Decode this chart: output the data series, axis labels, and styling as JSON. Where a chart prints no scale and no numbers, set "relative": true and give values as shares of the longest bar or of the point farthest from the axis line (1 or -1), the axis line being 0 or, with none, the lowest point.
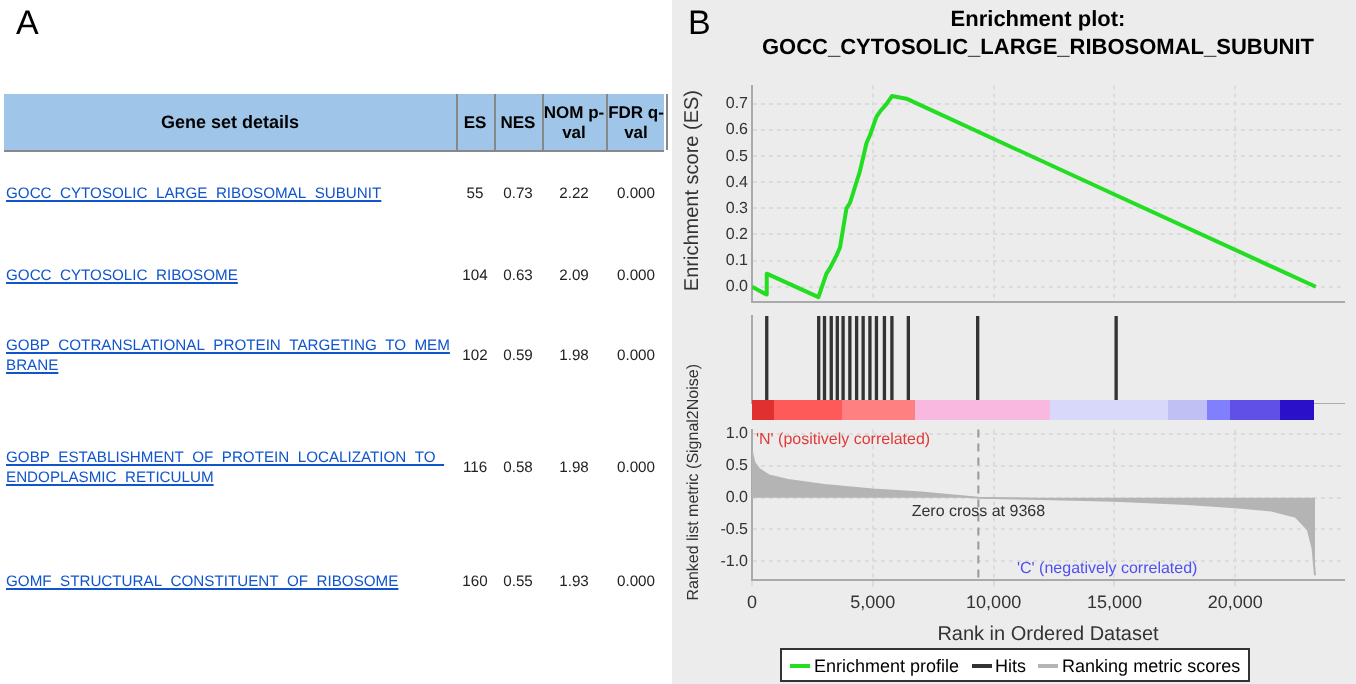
{
  "chart_data": [
    {
      "type": "other",
      "annotations": [
        "A"
      ],
      "xlabel": "Gene set details",
      "data_labels": true,
      "categories": [
        "GOCC_CYTOSOLIC_LARGE_RIBOSOMAL_SUBUNIT",
        "GOCC_CYTOSOLIC_RIBOSOME",
        "GOBP_COTRANSLATIONAL_PROTEIN_TARGETING_TO_MEMBRANE",
        "GOBP_ESTABLISHMENT_OF_PROTEIN_LOCALIZATION_TO_ENDOPLASMIC_RETICULUM",
        "GOMF_STRUCTURAL_CONSTITUENT_OF_RIBOSOME"
      ],
      "series": [
        {
          "name": "ES",
          "values": [
            55,
            104,
            102,
            116,
            160
          ]
        },
        {
          "name": "NES",
          "values": [
            0.73,
            0.63,
            0.59,
            0.58,
            0.55
          ]
        },
        {
          "name": "NOM p-val",
          "values": [
            2.22,
            2.09,
            1.98,
            1.98,
            1.93
          ]
        },
        {
          "name": "FDR q-val",
          "values": [
            0,
            0,
            0,
            0,
            0
          ],
          "value_labels": [
            "0.000",
            "0.000",
            "0.000",
            "0.000",
            "0.000"
          ]
        }
      ]
    },
    {
      "type": "line",
      "title": "Enrichment plot: GOCC_CYTOSOLIC_LARGE_RIBOSOMAL_SUBUNIT",
      "annotations": [
        "B"
      ],
      "ylabel": "Enrichment score (ES)",
      "xlim": [
        0,
        24500
      ],
      "xticks": [
        0,
        5000,
        10000,
        15000,
        20000
      ],
      "ylim": [
        -0.06,
        0.77
      ],
      "yticks": [
        {
          "value": 0,
          "label": "0.0"
        },
        0.1,
        0.2,
        0.3,
        0.4,
        0.5,
        0.6,
        0.7
      ],
      "tick_labels": "y",
      "grid": true,
      "legend": "bottom",
      "marker": "none",
      "series": [
        {
          "name": "Enrichment profile",
          "color": "#22dd22",
          "x": [
            0,
            600,
            610,
            2750,
            3080,
            3220,
            3500,
            3640,
            3910,
            4050,
            4190,
            4320,
            4460,
            4740,
            4880,
            5150,
            5290,
            5570,
            5790,
            6390,
            15070,
            23330
          ],
          "values": [
            0.0,
            -0.03,
            0.05,
            -0.04,
            0.05,
            0.07,
            0.12,
            0.15,
            0.3,
            0.32,
            0.36,
            0.4,
            0.44,
            0.55,
            0.58,
            0.65,
            0.67,
            0.7,
            0.73,
            0.72,
            0.35,
            0.0
          ]
        }
      ]
    },
    {
      "type": "bar",
      "relative": true,
      "xlim": [
        0,
        24500
      ],
      "tick_labels": false,
      "legend": "bottom",
      "series": [
        {
          "name": "Hits",
          "color": "#333333",
          "x": [
            610,
            2760,
            3000,
            3280,
            3530,
            3770,
            4050,
            4330,
            4600,
            4880,
            5150,
            5480,
            5790,
            6470,
            9340,
            15070
          ],
          "values": [
            1,
            1,
            1,
            1,
            1,
            1,
            1,
            1,
            1,
            1,
            1,
            1,
            1,
            1,
            1,
            1
          ]
        }
      ]
    },
    {
      "type": "area",
      "xlabel": "Rank in Ordered Dataset",
      "ylabel": "Ranked list metric (Signal2Noise)",
      "xlim": [
        0,
        24500
      ],
      "xticks": [
        {
          "value": 0,
          "label": "0"
        },
        {
          "value": 5000,
          "label": "5,000"
        },
        {
          "value": 10000,
          "label": "10,000"
        },
        {
          "value": 15000,
          "label": "15,000"
        },
        {
          "value": 20000,
          "label": "20,000"
        }
      ],
      "ylim": [
        -1.3,
        1.07
      ],
      "yticks": [
        {
          "value": -1,
          "label": "-1.0"
        },
        -0.5,
        {
          "value": 0,
          "label": "0.0"
        },
        0.5,
        {
          "value": 1,
          "label": "1.0"
        }
      ],
      "grid": true,
      "legend": "bottom",
      "annotations": [
        "'N' (positively correlated)",
        "'C' (negatively correlated)"
      ],
      "ref_lines": [
        {
          "axis": "x",
          "value": 9368,
          "label": "Zero cross at 9368",
          "color": "#999999",
          "line_style": "dashed"
        }
      ],
      "series": [
        {
          "name": "Ranking metric scores",
          "color": "#b4b4b4",
          "x": [
            0,
            100,
            300,
            700,
            1500,
            3000,
            5000,
            7000,
            9368,
            12000,
            15000,
            18000,
            20000,
            21500,
            22500,
            23000,
            23200,
            23300
          ],
          "values": [
            0.72,
            0.55,
            0.45,
            0.35,
            0.28,
            0.2,
            0.13,
            0.08,
            0.0,
            -0.02,
            -0.05,
            -0.1,
            -0.15,
            -0.2,
            -0.3,
            -0.5,
            -0.8,
            -1.22
          ]
        }
      ]
    }
  ]
}
